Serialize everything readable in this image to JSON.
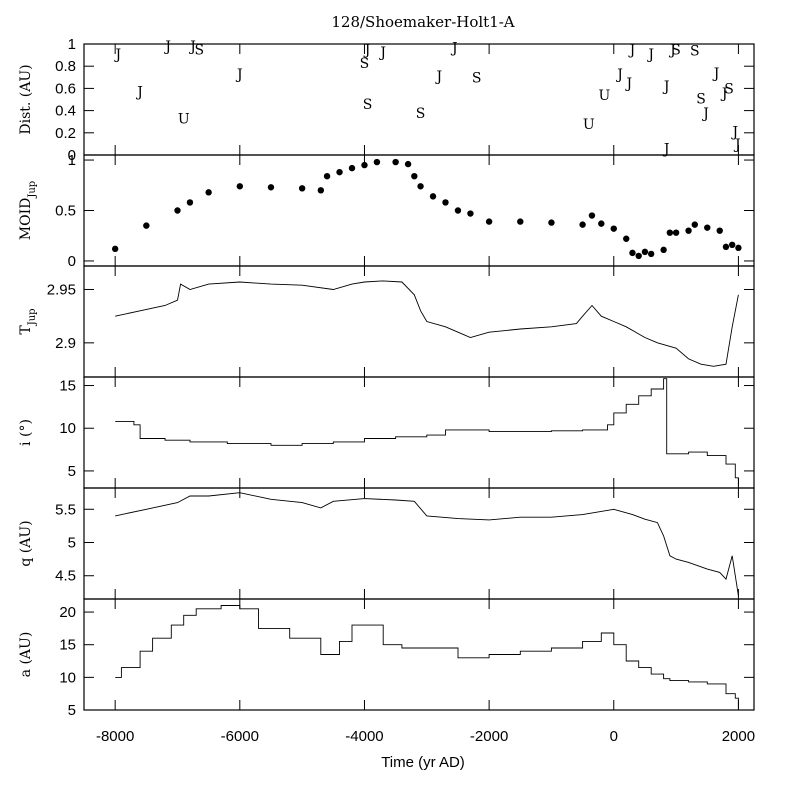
{
  "chart_data": {
    "type": "line",
    "title": "128/Shoemaker-Holt1-A",
    "xlabel": "Time (yr AD)",
    "xlim": [
      -8500,
      2250
    ],
    "xticks": [
      -8000,
      -6000,
      -4000,
      -2000,
      0,
      2000
    ],
    "xtick_labels": [
      "-8000",
      "-6000",
      "-4000",
      "-2000",
      "0",
      "2000"
    ],
    "panels": [
      {
        "key": "dist",
        "ylabel": "Dist. (AU)",
        "kind": "letters",
        "ylim": [
          0,
          1
        ],
        "yticks": [
          0,
          0.2,
          0.4,
          0.6,
          0.8,
          1
        ],
        "ytick_labels": [
          "0",
          "0.2",
          "0.4",
          "0.6",
          "0.8",
          "1"
        ],
        "encounters": [
          {
            "t": -7950,
            "d": 0.91,
            "planet": "J"
          },
          {
            "t": -7600,
            "d": 0.57,
            "planet": "J"
          },
          {
            "t": -7150,
            "d": 0.98,
            "planet": "J"
          },
          {
            "t": -6900,
            "d": 0.33,
            "planet": "U"
          },
          {
            "t": -6750,
            "d": 0.98,
            "planet": "J"
          },
          {
            "t": -6650,
            "d": 0.95,
            "planet": "S"
          },
          {
            "t": -6000,
            "d": 0.73,
            "planet": "J"
          },
          {
            "t": -4000,
            "d": 0.83,
            "planet": "S"
          },
          {
            "t": -3950,
            "d": 0.95,
            "planet": "J"
          },
          {
            "t": -3950,
            "d": 0.46,
            "planet": "S"
          },
          {
            "t": -3700,
            "d": 0.93,
            "planet": "J"
          },
          {
            "t": -3100,
            "d": 0.38,
            "planet": "S"
          },
          {
            "t": -2800,
            "d": 0.71,
            "planet": "J"
          },
          {
            "t": -2550,
            "d": 0.97,
            "planet": "J"
          },
          {
            "t": -2200,
            "d": 0.7,
            "planet": "S"
          },
          {
            "t": -400,
            "d": 0.28,
            "planet": "U"
          },
          {
            "t": -150,
            "d": 0.54,
            "planet": "U"
          },
          {
            "t": 100,
            "d": 0.73,
            "planet": "J"
          },
          {
            "t": 250,
            "d": 0.65,
            "planet": "J"
          },
          {
            "t": 300,
            "d": 0.95,
            "planet": "J"
          },
          {
            "t": 600,
            "d": 0.91,
            "planet": "J"
          },
          {
            "t": 850,
            "d": 0.62,
            "planet": "J"
          },
          {
            "t": 850,
            "d": 0.06,
            "planet": "J"
          },
          {
            "t": 950,
            "d": 0.95,
            "planet": "J"
          },
          {
            "t": 1000,
            "d": 0.95,
            "planet": "S"
          },
          {
            "t": 1300,
            "d": 0.94,
            "planet": "S"
          },
          {
            "t": 1400,
            "d": 0.51,
            "planet": "S"
          },
          {
            "t": 1480,
            "d": 0.38,
            "planet": "J"
          },
          {
            "t": 1650,
            "d": 0.74,
            "planet": "J"
          },
          {
            "t": 1780,
            "d": 0.56,
            "planet": "J"
          },
          {
            "t": 1850,
            "d": 0.6,
            "planet": "S"
          },
          {
            "t": 1950,
            "d": 0.21,
            "planet": "J"
          },
          {
            "t": 1990,
            "d": 0.1,
            "planet": "J"
          }
        ]
      },
      {
        "key": "moid",
        "ylabel": "MOID",
        "ylabel_sub": "Jup",
        "kind": "points",
        "ylim": [
          -0.05,
          1.05
        ],
        "yticks": [
          0,
          0.5,
          1
        ],
        "ytick_labels": [
          "0",
          "0.5",
          "1"
        ],
        "x": [
          -8000,
          -7500,
          -7000,
          -6800,
          -6500,
          -6000,
          -5500,
          -5000,
          -4700,
          -4600,
          -4400,
          -4200,
          -4000,
          -3800,
          -3500,
          -3300,
          -3200,
          -3100,
          -2900,
          -2700,
          -2500,
          -2300,
          -2000,
          -1500,
          -1000,
          -500,
          -350,
          -200,
          0,
          200,
          300,
          400,
          500,
          600,
          800,
          900,
          1000,
          1200,
          1300,
          1500,
          1700,
          1800,
          1900,
          2000
        ],
        "y": [
          0.12,
          0.35,
          0.5,
          0.58,
          0.68,
          0.74,
          0.73,
          0.72,
          0.7,
          0.84,
          0.88,
          0.92,
          0.95,
          0.98,
          0.98,
          0.96,
          0.84,
          0.74,
          0.64,
          0.58,
          0.5,
          0.47,
          0.39,
          0.39,
          0.38,
          0.36,
          0.45,
          0.37,
          0.32,
          0.22,
          0.08,
          0.05,
          0.09,
          0.07,
          0.11,
          0.28,
          0.28,
          0.3,
          0.36,
          0.33,
          0.3,
          0.14,
          0.16,
          0.13
        ]
      },
      {
        "key": "tjup",
        "ylabel": "T",
        "ylabel_sub": "Jup",
        "kind": "line",
        "ylim": [
          2.868,
          2.972
        ],
        "yticks": [
          2.9,
          2.95
        ],
        "ytick_labels": [
          "2.9",
          "2.95"
        ],
        "x": [
          -8000,
          -7600,
          -7200,
          -7000,
          -6950,
          -6800,
          -6500,
          -6000,
          -5500,
          -5000,
          -4500,
          -4200,
          -4000,
          -3700,
          -3400,
          -3200,
          -3100,
          -3000,
          -2700,
          -2500,
          -2300,
          -2000,
          -1500,
          -1000,
          -600,
          -500,
          -350,
          -200,
          0,
          200,
          500,
          700,
          1000,
          1200,
          1400,
          1600,
          1800,
          1900,
          2000
        ],
        "y": [
          2.925,
          2.93,
          2.935,
          2.94,
          2.955,
          2.95,
          2.955,
          2.957,
          2.955,
          2.954,
          2.95,
          2.955,
          2.957,
          2.958,
          2.957,
          2.945,
          2.93,
          2.92,
          2.915,
          2.91,
          2.905,
          2.91,
          2.913,
          2.915,
          2.918,
          2.925,
          2.935,
          2.925,
          2.92,
          2.915,
          2.905,
          2.9,
          2.895,
          2.885,
          2.88,
          2.878,
          2.88,
          2.915,
          2.945
        ]
      },
      {
        "key": "incl",
        "ylabel": "i (°)",
        "kind": "step",
        "ylim": [
          3.0,
          16.0
        ],
        "yticks": [
          5,
          10,
          15
        ],
        "ytick_labels": [
          "5",
          "10",
          "15"
        ],
        "x": [
          -8000,
          -7700,
          -7600,
          -7200,
          -6800,
          -6200,
          -5500,
          -5000,
          -4500,
          -4000,
          -3500,
          -3000,
          -2700,
          -2500,
          -2000,
          -1000,
          -500,
          -100,
          0,
          200,
          400,
          600,
          800,
          850,
          1000,
          1200,
          1500,
          1600,
          1800,
          1950,
          2000
        ],
        "y": [
          10.8,
          10.4,
          8.8,
          8.6,
          8.4,
          8.2,
          8.0,
          8.2,
          8.4,
          8.8,
          9.0,
          9.2,
          9.8,
          9.8,
          9.6,
          9.7,
          9.8,
          10.4,
          11.8,
          12.8,
          13.8,
          14.6,
          15.8,
          7.0,
          7.0,
          7.2,
          6.8,
          6.8,
          5.8,
          4.2,
          3.2
        ]
      },
      {
        "key": "q",
        "ylabel": "q (AU)",
        "kind": "line",
        "ylim": [
          4.15,
          5.82
        ],
        "yticks": [
          4.5,
          5,
          5.5
        ],
        "ytick_labels": [
          "4.5",
          "5",
          "5.5"
        ],
        "x": [
          -8000,
          -7500,
          -7000,
          -6800,
          -6500,
          -6000,
          -5500,
          -5000,
          -4700,
          -4500,
          -4000,
          -3500,
          -3200,
          -3000,
          -2500,
          -2000,
          -1500,
          -1000,
          -500,
          0,
          300,
          500,
          700,
          800,
          900,
          1000,
          1200,
          1500,
          1700,
          1800,
          1900,
          2000
        ],
        "y": [
          5.4,
          5.5,
          5.6,
          5.7,
          5.7,
          5.75,
          5.65,
          5.6,
          5.52,
          5.62,
          5.66,
          5.64,
          5.62,
          5.4,
          5.36,
          5.34,
          5.38,
          5.38,
          5.42,
          5.5,
          5.42,
          5.35,
          5.3,
          5.1,
          4.8,
          4.75,
          4.7,
          4.6,
          4.55,
          4.45,
          4.8,
          4.2
        ]
      },
      {
        "key": "a",
        "ylabel": "a (AU)",
        "kind": "step",
        "ylim": [
          5,
          22
        ],
        "yticks": [
          5,
          10,
          15,
          20
        ],
        "ytick_labels": [
          "5",
          "10",
          "15",
          "20"
        ],
        "x": [
          -8000,
          -7900,
          -7600,
          -7400,
          -7100,
          -6900,
          -6700,
          -6300,
          -6000,
          -5700,
          -5200,
          -4700,
          -4400,
          -4200,
          -4000,
          -3700,
          -3400,
          -3000,
          -2500,
          -2000,
          -1500,
          -1000,
          -500,
          -200,
          0,
          200,
          400,
          600,
          800,
          900,
          1200,
          1500,
          1800,
          1950,
          2000
        ],
        "y": [
          10.0,
          11.5,
          14.0,
          16.0,
          18.0,
          19.5,
          20.5,
          21.0,
          20.5,
          17.5,
          16.0,
          13.5,
          15.5,
          18.0,
          18.0,
          15.0,
          14.5,
          14.5,
          13.0,
          13.5,
          14.0,
          14.5,
          15.5,
          16.8,
          15.0,
          12.5,
          11.5,
          10.5,
          9.8,
          9.5,
          9.3,
          9.0,
          7.5,
          6.8,
          5.3
        ]
      }
    ]
  }
}
